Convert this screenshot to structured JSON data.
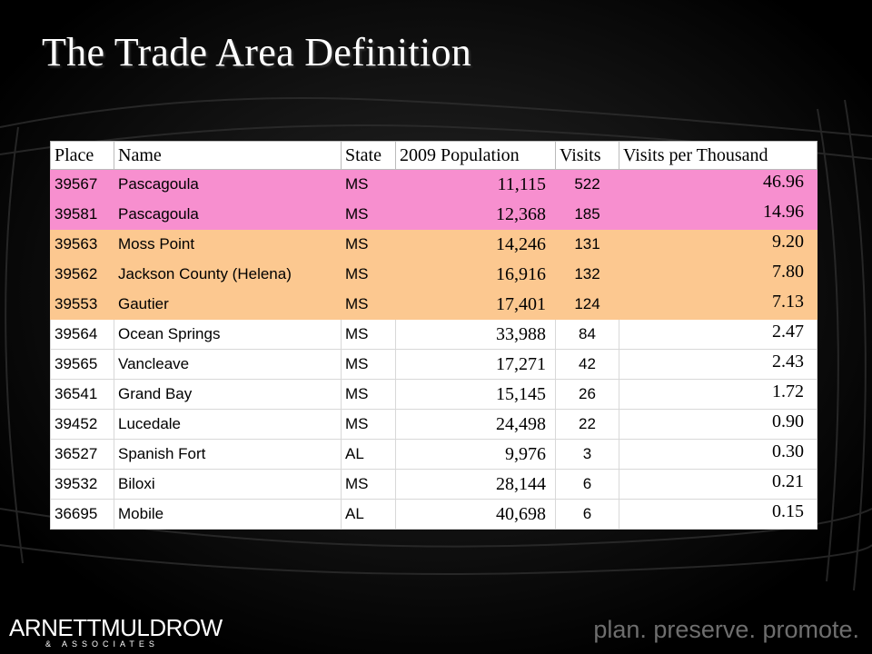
{
  "slide": {
    "title": "The Trade Area Definition"
  },
  "table": {
    "headers": [
      "Place",
      "Name",
      "State",
      "2009 Population",
      "Visits",
      "Visits per Thousand"
    ],
    "rows": [
      {
        "place": "39567",
        "name": "Pascagoula",
        "state": "MS",
        "population": "11,115",
        "visits": "522",
        "vpt": "46.96",
        "highlight": "pink"
      },
      {
        "place": "39581",
        "name": "Pascagoula",
        "state": "MS",
        "population": "12,368",
        "visits": "185",
        "vpt": "14.96",
        "highlight": "pink"
      },
      {
        "place": "39563",
        "name": "Moss Point",
        "state": "MS",
        "population": "14,246",
        "visits": "131",
        "vpt": "9.20",
        "highlight": "orange"
      },
      {
        "place": "39562",
        "name": "Jackson County (Helena)",
        "state": "MS",
        "population": "16,916",
        "visits": "132",
        "vpt": "7.80",
        "highlight": "orange"
      },
      {
        "place": "39553",
        "name": "Gautier",
        "state": "MS",
        "population": "17,401",
        "visits": "124",
        "vpt": "7.13",
        "highlight": "orange"
      },
      {
        "place": "39564",
        "name": "Ocean Springs",
        "state": "MS",
        "population": "33,988",
        "visits": "84",
        "vpt": "2.47",
        "highlight": "white"
      },
      {
        "place": "39565",
        "name": "Vancleave",
        "state": "MS",
        "population": "17,271",
        "visits": "42",
        "vpt": "2.43",
        "highlight": "white"
      },
      {
        "place": "36541",
        "name": "Grand Bay",
        "state": "MS",
        "population": "15,145",
        "visits": "26",
        "vpt": "1.72",
        "highlight": "white"
      },
      {
        "place": "39452",
        "name": "Lucedale",
        "state": "MS",
        "population": "24,498",
        "visits": "22",
        "vpt": "0.90",
        "highlight": "white"
      },
      {
        "place": "36527",
        "name": "Spanish Fort",
        "state": "AL",
        "population": "9,976",
        "visits": "3",
        "vpt": "0.30",
        "highlight": "white"
      },
      {
        "place": "39532",
        "name": "Biloxi",
        "state": "MS",
        "population": "28,144",
        "visits": "6",
        "vpt": "0.21",
        "highlight": "white"
      },
      {
        "place": "36695",
        "name": "Mobile",
        "state": "AL",
        "population": "40,698",
        "visits": "6",
        "vpt": "0.15",
        "highlight": "white"
      }
    ]
  },
  "footer": {
    "logo_main": "ARNETTMULDROW",
    "logo_sub": "& ASSOCIATES",
    "tagline": "plan. preserve. promote."
  },
  "colors": {
    "background": "#000000",
    "pink_highlight": "#f78fcf",
    "orange_highlight": "#fcc890"
  }
}
